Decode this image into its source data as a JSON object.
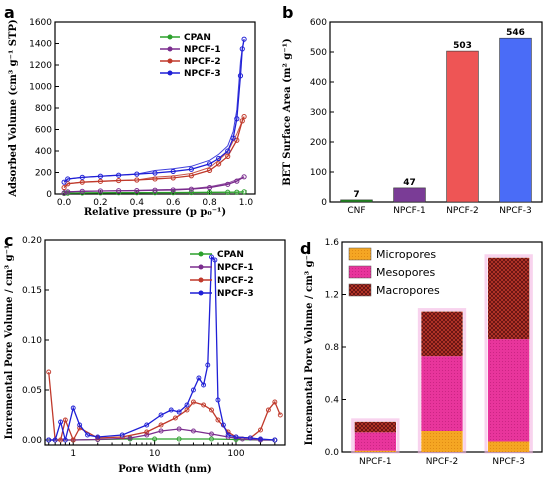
{
  "colors": {
    "CPAN": "#2ca02c",
    "NPCF-1": "#7b2d8e",
    "NPCF-2": "#c0392b",
    "NPCF-3": "#1f1fd6",
    "bar_CNF": "#1b8f1b",
    "bar_NPCF-1": "#7a3c96",
    "bar_NPCF-2": "#ee5555",
    "bar_NPCF-3": "#4a6cf7",
    "micro": "#f5a623",
    "meso": "#e8359c",
    "macro": "#c0392b"
  },
  "panels": {
    "a": "a",
    "b": "b",
    "c": "c",
    "d": "d"
  },
  "chart_data": [
    {
      "panel": "a",
      "type": "line",
      "xlabel": "Relative pressure (p p₀⁻¹)",
      "ylabel": "Adsorbed Volume (cm³ g⁻¹ STP)",
      "xlim": [
        -0.05,
        1.05
      ],
      "ylim": [
        0,
        1600
      ],
      "xticks": [
        "0.0",
        "0.2",
        "0.4",
        "0.6",
        "0.8",
        "1.0"
      ],
      "yticks": [
        "0",
        "200",
        "400",
        "600",
        "800",
        "1000",
        "1200",
        "1400",
        "1600"
      ],
      "legend": "top-right",
      "series": [
        {
          "name": "CPAN",
          "x": [
            0.0,
            0.02,
            0.1,
            0.2,
            0.3,
            0.4,
            0.5,
            0.6,
            0.7,
            0.8,
            0.9,
            0.95,
            0.99
          ],
          "y": [
            5,
            8,
            10,
            11,
            12,
            12,
            13,
            13,
            14,
            15,
            16,
            17,
            20
          ]
        },
        {
          "name": "NPCF-1",
          "x": [
            0.0,
            0.02,
            0.1,
            0.2,
            0.3,
            0.4,
            0.5,
            0.6,
            0.7,
            0.8,
            0.9,
            0.95,
            0.99
          ],
          "y": [
            10,
            20,
            25,
            28,
            30,
            32,
            35,
            38,
            45,
            60,
            90,
            120,
            160
          ]
        },
        {
          "name": "NPCF-2",
          "x": [
            0.0,
            0.02,
            0.1,
            0.2,
            0.3,
            0.4,
            0.5,
            0.6,
            0.7,
            0.8,
            0.85,
            0.9,
            0.95,
            0.98,
            0.99
          ],
          "y": [
            60,
            95,
            110,
            118,
            125,
            130,
            140,
            150,
            170,
            220,
            280,
            350,
            500,
            680,
            720
          ]
        },
        {
          "name": "NPCF-3",
          "x": [
            0.0,
            0.02,
            0.1,
            0.2,
            0.3,
            0.4,
            0.5,
            0.6,
            0.7,
            0.8,
            0.85,
            0.9,
            0.93,
            0.95,
            0.97,
            0.98,
            0.99
          ],
          "y": [
            110,
            140,
            155,
            165,
            175,
            185,
            195,
            210,
            230,
            280,
            330,
            400,
            520,
            700,
            1100,
            1350,
            1440
          ]
        }
      ]
    },
    {
      "panel": "b",
      "type": "bar",
      "ylabel": "BET Surface Area (m² g⁻¹)",
      "categories": [
        "CNF",
        "NPCF-1",
        "NPCF-2",
        "NPCF-3"
      ],
      "values": [
        7,
        47,
        503,
        546
      ],
      "data_labels": [
        "7",
        "47",
        "503",
        "546"
      ],
      "ylim": [
        0,
        600
      ],
      "yticks": [
        "0",
        "100",
        "200",
        "300",
        "400",
        "500",
        "600"
      ]
    },
    {
      "panel": "c",
      "type": "line",
      "xscale": "log",
      "xlabel": "Pore Width (nm)",
      "ylabel": "Incremental Pore Volume / cm³ g⁻¹",
      "xlim": [
        0.45,
        400
      ],
      "ylim": [
        -0.005,
        0.2
      ],
      "xticks": [
        "1",
        "10",
        "100"
      ],
      "yticks": [
        "0.00",
        "0.05",
        "0.10",
        "0.15",
        "0.20"
      ],
      "legend": "top-right",
      "series": [
        {
          "name": "CPAN",
          "x": [
            0.5,
            1,
            2,
            5,
            10,
            20,
            50,
            100,
            200,
            300
          ],
          "y": [
            0.0,
            0.0,
            0.0005,
            0.001,
            0.001,
            0.001,
            0.001,
            0.0005,
            0.0,
            0.0
          ]
        },
        {
          "name": "NPCF-1",
          "x": [
            0.5,
            1,
            2,
            5,
            8,
            12,
            20,
            30,
            50,
            80,
            120,
            200,
            300
          ],
          "y": [
            0.0,
            0.0,
            0.0005,
            0.002,
            0.005,
            0.009,
            0.011,
            0.009,
            0.006,
            0.003,
            0.001,
            0.0,
            0.0
          ]
        },
        {
          "name": "NPCF-2",
          "x": [
            0.5,
            0.6,
            0.7,
            0.8,
            1.0,
            1.2,
            2,
            4,
            8,
            12,
            18,
            25,
            30,
            40,
            50,
            60,
            80,
            100,
            150,
            200,
            250,
            300,
            350
          ],
          "y": [
            0.068,
            0.0,
            0.0,
            0.02,
            0.0,
            0.012,
            0.002,
            0.003,
            0.008,
            0.015,
            0.022,
            0.03,
            0.038,
            0.035,
            0.03,
            0.02,
            0.008,
            0.003,
            0.002,
            0.01,
            0.03,
            0.038,
            0.025
          ]
        },
        {
          "name": "NPCF-3",
          "x": [
            0.5,
            0.6,
            0.7,
            0.8,
            1.0,
            1.2,
            1.5,
            2,
            4,
            8,
            12,
            16,
            20,
            25,
            30,
            35,
            40,
            45,
            50,
            55,
            60,
            70,
            80,
            100,
            150,
            200,
            300
          ],
          "y": [
            0.0,
            0.0,
            0.018,
            0.0,
            0.032,
            0.015,
            0.005,
            0.003,
            0.005,
            0.015,
            0.025,
            0.03,
            0.028,
            0.035,
            0.05,
            0.062,
            0.055,
            0.075,
            0.183,
            0.18,
            0.04,
            0.015,
            0.005,
            0.003,
            0.002,
            0.001,
            0.0
          ]
        }
      ]
    },
    {
      "panel": "d",
      "type": "bar",
      "stacked": true,
      "ylabel": "Incremental Pore Volume / cm³ g⁻¹",
      "categories": [
        "NPCF-1",
        "NPCF-2",
        "NPCF-3"
      ],
      "ylim": [
        0,
        1.6
      ],
      "yticks": [
        "0.0",
        "0.4",
        "0.8",
        "1.2",
        "1.6"
      ],
      "legend": "top-left",
      "series": [
        {
          "name": "Micropores",
          "values": [
            0.01,
            0.16,
            0.08
          ]
        },
        {
          "name": "Mesopores",
          "values": [
            0.14,
            0.57,
            0.78
          ]
        },
        {
          "name": "Macropores",
          "values": [
            0.08,
            0.34,
            0.62
          ]
        }
      ]
    }
  ]
}
